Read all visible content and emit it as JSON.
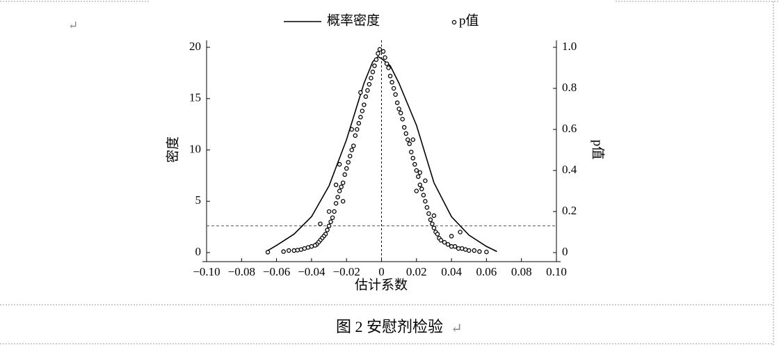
{
  "chart_data": {
    "type": "scatter",
    "xlabel": "估计系数",
    "ylabel": "密度",
    "y2label": "p值",
    "xlim": [
      -0.1,
      0.1
    ],
    "xticks": [
      {
        "value": -0.1,
        "label": "−0.10"
      },
      {
        "value": -0.08,
        "label": "−0.08"
      },
      {
        "value": -0.06,
        "label": "−0.06"
      },
      {
        "value": -0.04,
        "label": "−0.04"
      },
      {
        "value": -0.02,
        "label": "−0.02"
      },
      0,
      0.02,
      0.04,
      0.06,
      0.08,
      {
        "value": 0.1,
        "label": "0.10"
      }
    ],
    "ylim": [
      0,
      20
    ],
    "yticks": [
      0,
      5,
      10,
      15,
      20
    ],
    "y2lim": [
      0,
      1
    ],
    "y2ticks": [
      0,
      0.2,
      0.4,
      0.6,
      0.8,
      {
        "value": 1,
        "label": "1.0"
      }
    ],
    "vline_x": 0,
    "hline_y2": 0.13,
    "series": [
      {
        "name": "概率密度",
        "kind": "line",
        "color": "#000000",
        "x": [
          -0.066,
          -0.06,
          -0.05,
          -0.04,
          -0.03,
          -0.02,
          -0.01,
          -0.005,
          -0.002,
          0,
          0.005,
          0.01,
          0.02,
          0.03,
          0.04,
          0.05,
          0.06,
          0.066
        ],
        "values": [
          0.1,
          0.7,
          1.8,
          3.5,
          6.5,
          11,
          16.5,
          18.6,
          19.1,
          18.9,
          18.2,
          16.5,
          12.4,
          6.8,
          3.5,
          1.7,
          0.6,
          0.1
        ]
      },
      {
        "name": "p值",
        "kind": "scatter",
        "axis": "y2",
        "color": "#000000",
        "x": [
          -0.001,
          -0.002,
          -0.003,
          -0.004,
          -0.005,
          -0.006,
          -0.007,
          -0.008,
          -0.009,
          -0.01,
          -0.011,
          -0.012,
          -0.013,
          -0.014,
          -0.015,
          -0.016,
          -0.017,
          -0.018,
          -0.019,
          -0.02,
          -0.021,
          -0.022,
          -0.023,
          -0.024,
          -0.025,
          -0.026,
          -0.027,
          -0.028,
          -0.029,
          -0.03,
          -0.031,
          -0.032,
          -0.033,
          -0.034,
          -0.035,
          -0.036,
          -0.037,
          -0.038,
          -0.04,
          -0.042,
          -0.044,
          -0.046,
          -0.048,
          -0.05,
          -0.053,
          -0.056,
          -0.065,
          -0.024,
          -0.026,
          -0.017,
          -0.022,
          -0.012,
          -0.03,
          -0.035,
          0.001,
          0.002,
          0.003,
          0.004,
          0.005,
          0.006,
          0.007,
          0.008,
          0.009,
          0.01,
          0.011,
          0.012,
          0.013,
          0.014,
          0.015,
          0.016,
          0.017,
          0.018,
          0.019,
          0.02,
          0.021,
          0.022,
          0.023,
          0.024,
          0.025,
          0.026,
          0.027,
          0.028,
          0.029,
          0.03,
          0.031,
          0.032,
          0.033,
          0.034,
          0.036,
          0.038,
          0.04,
          0.042,
          0.044,
          0.046,
          0.048,
          0.05,
          0.053,
          0.056,
          0.06,
          0.02,
          0.022,
          0.025,
          0.018,
          0.03,
          0.04,
          0.045
        ],
        "values": [
          0.99,
          0.97,
          0.94,
          0.91,
          0.88,
          0.85,
          0.82,
          0.79,
          0.76,
          0.72,
          0.69,
          0.66,
          0.63,
          0.6,
          0.57,
          0.52,
          0.5,
          0.47,
          0.44,
          0.41,
          0.38,
          0.34,
          0.32,
          0.3,
          0.27,
          0.24,
          0.2,
          0.17,
          0.15,
          0.13,
          0.11,
          0.09,
          0.08,
          0.07,
          0.06,
          0.05,
          0.04,
          0.035,
          0.03,
          0.025,
          0.02,
          0.015,
          0.012,
          0.01,
          0.01,
          0.005,
          0.002,
          0.43,
          0.33,
          0.6,
          0.25,
          0.78,
          0.2,
          0.14,
          0.98,
          0.95,
          0.92,
          0.9,
          0.86,
          0.83,
          0.8,
          0.77,
          0.73,
          0.7,
          0.68,
          0.65,
          0.61,
          0.58,
          0.55,
          0.53,
          0.49,
          0.46,
          0.43,
          0.4,
          0.37,
          0.33,
          0.31,
          0.28,
          0.25,
          0.22,
          0.19,
          0.16,
          0.14,
          0.12,
          0.1,
          0.09,
          0.07,
          0.06,
          0.05,
          0.04,
          0.03,
          0.03,
          0.02,
          0.02,
          0.015,
          0.01,
          0.01,
          0.005,
          0.003,
          0.3,
          0.39,
          0.35,
          0.55,
          0.18,
          0.08,
          0.1
        ]
      }
    ]
  },
  "caption": "图 2 安慰剂检验",
  "paragraph_mark": "↵"
}
